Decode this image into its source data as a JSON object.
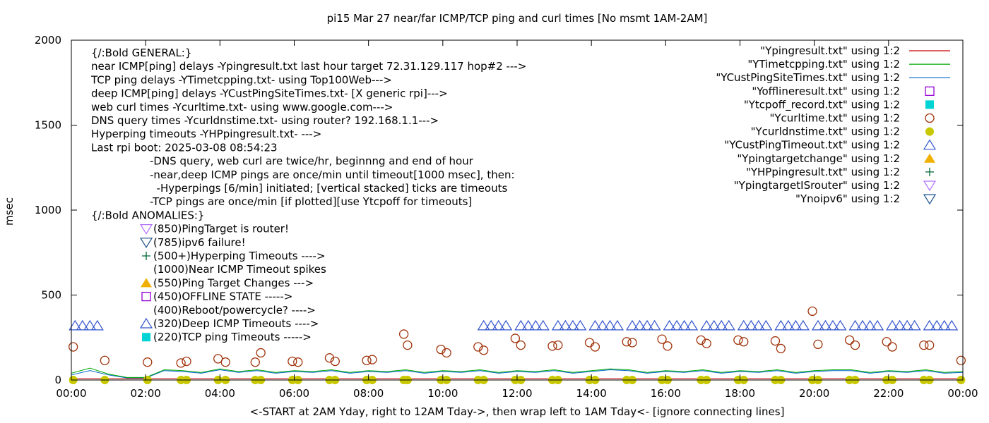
{
  "chart_data": {
    "type": "scatter",
    "title": "pi15 Mar 27  near/far ICMP/TCP ping and curl times [No msmt 1AM-2AM]",
    "xlabel": "<-START at 2AM Yday, right to 12AM Tday->, then wrap left to 1AM Tday<- [ignore connecting lines]",
    "ylabel": "msec",
    "x_unit": "hours",
    "xlim": [
      0,
      24
    ],
    "ylim": [
      0,
      2000
    ],
    "x_ticks": [
      {
        "value": 0,
        "label": "00:00"
      },
      {
        "value": 2,
        "label": "02:00"
      },
      {
        "value": 4,
        "label": "04:00"
      },
      {
        "value": 6,
        "label": "06:00"
      },
      {
        "value": 8,
        "label": "08:00"
      },
      {
        "value": 10,
        "label": "10:00"
      },
      {
        "value": 12,
        "label": "12:00"
      },
      {
        "value": 14,
        "label": "14:00"
      },
      {
        "value": 16,
        "label": "16:00"
      },
      {
        "value": 18,
        "label": "18:00"
      },
      {
        "value": 20,
        "label": "20:00"
      },
      {
        "value": 22,
        "label": "22:00"
      },
      {
        "value": 24,
        "label": "00:00"
      }
    ],
    "y_ticks": [
      {
        "value": 0,
        "label": "0"
      },
      {
        "value": 500,
        "label": "500"
      },
      {
        "value": 1000,
        "label": "1000"
      },
      {
        "value": 1500,
        "label": "1500"
      },
      {
        "value": 2000,
        "label": "2000"
      }
    ],
    "grid": false,
    "legend_position": "top-right",
    "series": [
      {
        "name": "\"Ypingresult.txt\" using 1:2",
        "marker": "line",
        "color": "#cc0000",
        "x": [
          0,
          1,
          2,
          4,
          6,
          8,
          10,
          12,
          14,
          16,
          18,
          20,
          22,
          24
        ],
        "y": [
          8,
          8,
          8,
          8,
          8,
          8,
          8,
          8,
          8,
          8,
          8,
          8,
          8,
          8
        ]
      },
      {
        "name": "\"YTimetcpping.txt\" using 1:2",
        "marker": "line",
        "color": "#00aa00",
        "x": [
          0,
          0.5,
          1,
          1.5,
          2,
          2.5,
          3,
          3.5,
          4,
          4.5,
          5,
          5.5,
          6,
          6.5,
          7,
          7.5,
          8,
          8.5,
          9,
          9.5,
          10,
          10.5,
          11,
          11.5,
          12,
          12.5,
          13,
          13.5,
          14,
          14.5,
          15,
          15.5,
          16,
          16.5,
          17,
          17.5,
          18,
          18.5,
          19,
          19.5,
          20,
          20.5,
          21,
          21.5,
          22,
          22.5,
          23,
          23.5,
          24
        ],
        "y": [
          40,
          70,
          35,
          15,
          15,
          60,
          55,
          45,
          65,
          50,
          60,
          45,
          55,
          50,
          60,
          45,
          55,
          50,
          60,
          45,
          55,
          50,
          60,
          45,
          55,
          50,
          60,
          45,
          55,
          65,
          60,
          45,
          55,
          50,
          60,
          45,
          55,
          50,
          60,
          45,
          55,
          60,
          60,
          45,
          55,
          50,
          60,
          45,
          50
        ]
      },
      {
        "name": "\"YCustPingSiteTimes.txt\" using 1:2",
        "marker": "line",
        "color": "#0066cc",
        "x": [
          0,
          0.5,
          1,
          1.5,
          2,
          2.5,
          3,
          3.5,
          4,
          4.5,
          5,
          5.5,
          6,
          6.5,
          7,
          7.5,
          8,
          8.5,
          9,
          9.5,
          10,
          10.5,
          11,
          11.5,
          12,
          12.5,
          13,
          13.5,
          14,
          14.5,
          15,
          15.5,
          16,
          16.5,
          17,
          17.5,
          18,
          18.5,
          19,
          19.5,
          20,
          20.5,
          21,
          21.5,
          22,
          22.5,
          23,
          23.5,
          24
        ],
        "y": [
          30,
          55,
          30,
          12,
          12,
          55,
          50,
          40,
          60,
          45,
          55,
          40,
          50,
          45,
          55,
          40,
          50,
          45,
          55,
          40,
          50,
          45,
          55,
          40,
          50,
          45,
          55,
          40,
          50,
          60,
          55,
          40,
          50,
          45,
          55,
          40,
          50,
          45,
          55,
          40,
          50,
          55,
          55,
          40,
          50,
          45,
          55,
          40,
          45
        ]
      },
      {
        "name": "\"Yofflineresult.txt\" using 1:2",
        "marker": "open-square",
        "color": "#9400d3",
        "x": [],
        "y": []
      },
      {
        "name": "\"Ytcpoff_record.txt\" using 1:2",
        "marker": "filled-square",
        "color": "#00d3d3",
        "x": [],
        "y": []
      },
      {
        "name": "\"Ycurltime.txt\" using 1:2",
        "marker": "open-circle",
        "color": "#a0320a",
        "x": [
          0.05,
          0.9,
          2.05,
          2.95,
          3.1,
          3.95,
          4.15,
          4.95,
          5.1,
          5.95,
          6.1,
          6.95,
          7.1,
          7.95,
          8.1,
          8.95,
          9.05,
          9.95,
          10.1,
          10.95,
          11.1,
          11.95,
          12.1,
          12.95,
          13.1,
          13.95,
          14.1,
          14.95,
          15.1,
          15.9,
          16.05,
          16.95,
          17.1,
          17.95,
          18.1,
          18.95,
          19.1,
          19.95,
          20.1,
          20.95,
          21.1,
          21.95,
          22.1,
          22.95,
          23.1,
          23.95
        ],
        "y": [
          195,
          115,
          105,
          100,
          110,
          125,
          105,
          105,
          160,
          110,
          105,
          130,
          110,
          115,
          120,
          270,
          205,
          180,
          160,
          195,
          175,
          245,
          205,
          200,
          205,
          220,
          195,
          225,
          220,
          240,
          200,
          235,
          215,
          235,
          225,
          230,
          185,
          405,
          210,
          235,
          205,
          225,
          195,
          205,
          205,
          115
        ]
      },
      {
        "name": "\"Ycurldnstime.txt\" using 1:2",
        "marker": "filled-circle",
        "color": "#c8c800",
        "x": [
          0.05,
          0.9,
          2.05,
          2.95,
          3.1,
          3.95,
          4.15,
          4.95,
          5.1,
          5.95,
          6.1,
          6.95,
          7.1,
          7.95,
          8.1,
          8.95,
          9.05,
          9.95,
          10.1,
          10.95,
          11.1,
          11.95,
          12.1,
          12.95,
          13.1,
          13.95,
          14.1,
          14.95,
          15.1,
          15.9,
          16.05,
          16.95,
          17.1,
          17.95,
          18.1,
          18.95,
          19.1,
          19.95,
          20.1,
          20.95,
          21.1,
          21.95,
          22.1,
          22.95,
          23.1,
          23.95
        ],
        "y": [
          0,
          0,
          0,
          0,
          0,
          0,
          0,
          0,
          0,
          0,
          0,
          0,
          0,
          0,
          0,
          0,
          0,
          0,
          0,
          0,
          0,
          0,
          0,
          0,
          0,
          0,
          0,
          0,
          0,
          0,
          0,
          0,
          0,
          0,
          0,
          0,
          0,
          0,
          0,
          0,
          0,
          0,
          0,
          0,
          0,
          0
        ]
      },
      {
        "name": "\"YCustPingTimeout.txt\" using 1:2",
        "marker": "open-triangle-up",
        "color": "#3355cc",
        "x": [
          0.1,
          0.3,
          0.5,
          0.7,
          11.1,
          11.3,
          11.5,
          11.7,
          12.1,
          12.3,
          12.5,
          12.7,
          13.1,
          13.3,
          13.5,
          13.7,
          14.1,
          14.3,
          14.5,
          14.7,
          15.1,
          15.3,
          15.5,
          15.7,
          16.1,
          16.3,
          16.5,
          16.7,
          17.1,
          17.3,
          17.5,
          17.7,
          18.1,
          18.3,
          18.5,
          18.7,
          19.1,
          19.3,
          19.5,
          19.7,
          20.1,
          20.3,
          20.5,
          20.7,
          21.1,
          21.3,
          21.5,
          21.7,
          22.1,
          22.3,
          22.5,
          22.7,
          23.1,
          23.3,
          23.5,
          23.7
        ],
        "y": [
          320,
          320,
          320,
          320,
          320,
          320,
          320,
          320,
          320,
          320,
          320,
          320,
          320,
          320,
          320,
          320,
          320,
          320,
          320,
          320,
          320,
          320,
          320,
          320,
          320,
          320,
          320,
          320,
          320,
          320,
          320,
          320,
          320,
          320,
          320,
          320,
          320,
          320,
          320,
          320,
          320,
          320,
          320,
          320,
          320,
          320,
          320,
          320,
          320,
          320,
          320,
          320,
          320,
          320,
          320,
          320
        ]
      },
      {
        "name": "\"Ypingtargetchange\" using 1:2",
        "marker": "filled-triangle-up",
        "color": "#f0b000",
        "x": [],
        "y": []
      },
      {
        "name": "\"YHPpingresult.txt\" using 1:2",
        "marker": "plus",
        "color": "#006633",
        "x": [],
        "y": []
      },
      {
        "name": "\"YpingtargetISrouter\" using 1:2",
        "marker": "open-triangle-down",
        "color": "#b070ff",
        "x": [],
        "y": []
      },
      {
        "name": "\"Ynoipv6\" using 1:2",
        "marker": "open-triangle-down",
        "color": "#1a4f8a",
        "x": [],
        "y": []
      }
    ],
    "annotations": {
      "general_lines": [
        "{/:Bold GENERAL:}",
        "near ICMP[ping] delays -Ypingresult.txt last hour target 72.31.129.117 hop#2 --->",
        "TCP ping delays -YTimetcpping.txt- using Top100Web--->",
        "deep ICMP[ping] delays -YCustPingSiteTimes.txt- [X generic rpi]--->",
        "web curl times -Ycurltime.txt- using www.google.com--->",
        "DNS query times -Ycurldnstime.txt- using router? 192.168.1.1--->",
        "Hyperping timeouts -YHPpingresult.txt- --->",
        "Last rpi boot: 2025-03-08 08:54:23"
      ],
      "detail_lines": [
        "-DNS query, web curl are twice/hr, beginnng and end of hour",
        "-near,deep ICMP pings are once/min until timeout[1000 msec], then:",
        "  -Hyperpings [6/min] initiated; [vertical stacked] ticks are timeouts",
        "-TCP pings are once/min [if plotted][use Ytcpoff for timeouts]"
      ],
      "anomalies_title": "{/:Bold ANOMALIES:}",
      "anomalies": [
        {
          "marker": "open-triangle-down",
          "color": "#b070ff",
          "text": "(850)PingTarget is router!"
        },
        {
          "marker": "open-triangle-down",
          "color": "#1a4f8a",
          "text": "(785)ipv6 failure!"
        },
        {
          "marker": "plus",
          "color": "#006633",
          "text": "(500+)Hyperping Timeouts ---->"
        },
        {
          "marker": "none",
          "color": "#000000",
          "text": "(1000)Near ICMP Timeout spikes"
        },
        {
          "marker": "filled-triangle-up",
          "color": "#f0b000",
          "text": "(550)Ping Target Changes --->"
        },
        {
          "marker": "open-square",
          "color": "#9400d3",
          "text": "(450)OFFLINE STATE ----->"
        },
        {
          "marker": "none",
          "color": "#000000",
          "text": "(400)Reboot/powercycle? ---->"
        },
        {
          "marker": "open-triangle-up",
          "color": "#3355cc",
          "text": "(320)Deep ICMP Timeouts ---->"
        },
        {
          "marker": "filled-square",
          "color": "#00d3d3",
          "text": "(220)TCP ping Timeouts ----->"
        }
      ]
    }
  }
}
